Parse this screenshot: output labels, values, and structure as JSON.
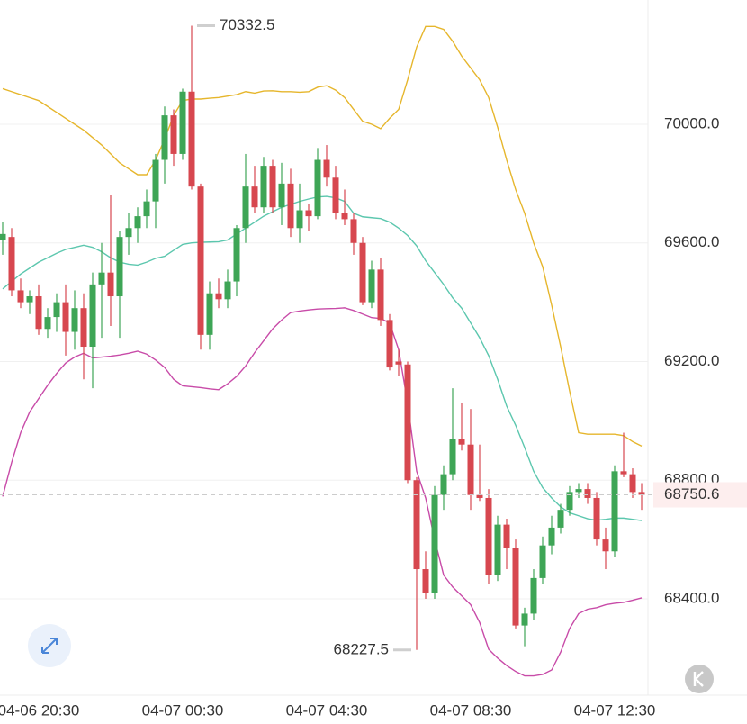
{
  "chart_data": {
    "type": "candlestick",
    "categories": [
      null,
      null,
      null,
      null,
      "04-06 20:30",
      null,
      null,
      null,
      null,
      null,
      null,
      null,
      null,
      null,
      null,
      null,
      null,
      null,
      null,
      null,
      "04-07 00:30",
      null,
      null,
      null,
      null,
      null,
      null,
      null,
      null,
      null,
      null,
      null,
      null,
      null,
      null,
      null,
      "04-07 04:30",
      null,
      null,
      null,
      null,
      null,
      null,
      null,
      null,
      null,
      null,
      null,
      null,
      null,
      null,
      null,
      "04-07 08:30",
      null,
      null,
      null,
      null,
      null,
      null,
      null,
      null,
      null,
      null,
      null,
      null,
      null,
      null,
      null,
      "04-07 12:30",
      null,
      null,
      null
    ],
    "open": [
      69610,
      69620,
      69440,
      69400,
      69420,
      69310,
      69350,
      69400,
      69300,
      69380,
      69250,
      69460,
      69500,
      69420,
      69620,
      69650,
      69690,
      69740,
      69880,
      70030,
      69900,
      70110,
      69790,
      69290,
      69430,
      69410,
      69470,
      69650,
      69790,
      69720,
      69860,
      69720,
      69800,
      69650,
      69710,
      69690,
      69880,
      69820,
      69700,
      69680,
      69600,
      69400,
      69510,
      69340,
      69200,
      69190,
      68800,
      68500,
      68420,
      68750,
      68820,
      68940,
      68920,
      68750,
      68740,
      68480,
      68650,
      68570,
      68310,
      68350,
      68470,
      68580,
      68640,
      68700,
      68760,
      68770,
      68740,
      68600,
      68560,
      68830,
      68820,
      68760
    ],
    "high": [
      69670,
      69650,
      69480,
      69440,
      69460,
      69380,
      69430,
      69460,
      69440,
      69430,
      69500,
      69600,
      69760,
      69640,
      69700,
      69720,
      69780,
      69900,
      70060,
      70050,
      70120,
      70332.5,
      69800,
      69470,
      69480,
      69510,
      69660,
      69900,
      69860,
      69890,
      69880,
      69870,
      69850,
      69800,
      69730,
      69920,
      69930,
      69860,
      69780,
      69700,
      69620,
      69540,
      69550,
      69360,
      69240,
      69200,
      68810,
      68560,
      68780,
      68850,
      69110,
      69060,
      69040,
      68920,
      68770,
      68680,
      68670,
      68600,
      68370,
      68500,
      68610,
      68680,
      68720,
      68780,
      68790,
      68790,
      68760,
      68640,
      68850,
      68960,
      68840,
      68790
    ],
    "low": [
      69560,
      69420,
      69380,
      69360,
      69290,
      69280,
      69300,
      69220,
      69240,
      69140,
      69110,
      69280,
      69320,
      69280,
      69560,
      69600,
      69650,
      69650,
      69800,
      69860,
      69880,
      69780,
      69240,
      69240,
      69380,
      69380,
      69420,
      69600,
      69700,
      69700,
      69700,
      69660,
      69620,
      69600,
      69640,
      69680,
      69790,
      69680,
      69660,
      69560,
      69390,
      69380,
      69320,
      69170,
      69150,
      68790,
      68227.5,
      68400,
      68400,
      68700,
      68800,
      68900,
      68700,
      68730,
      68450,
      68460,
      68500,
      68300,
      68240,
      68330,
      68450,
      68550,
      68620,
      68680,
      68740,
      68720,
      68580,
      68500,
      68540,
      68810,
      68740,
      68700
    ],
    "close": [
      69630,
      69440,
      69400,
      69420,
      69310,
      69350,
      69400,
      69300,
      69380,
      69250,
      69460,
      69500,
      69420,
      69620,
      69650,
      69690,
      69740,
      69880,
      70030,
      69900,
      70110,
      69790,
      69290,
      69430,
      69410,
      69470,
      69650,
      69790,
      69720,
      69860,
      69720,
      69800,
      69650,
      69710,
      69690,
      69880,
      69820,
      69700,
      69680,
      69600,
      69400,
      69510,
      69340,
      69180,
      69190,
      68800,
      68500,
      68420,
      68750,
      68820,
      68940,
      68920,
      68750,
      68740,
      68480,
      68650,
      68570,
      68310,
      68350,
      68470,
      68580,
      68640,
      68700,
      68760,
      68770,
      68740,
      68600,
      68560,
      68830,
      68820,
      68760,
      68750.6
    ],
    "up_color": "#3ea556",
    "down_color": "#d7474f",
    "lines": [
      {
        "color": "#e6b62c",
        "values": [
          70120,
          70110,
          70100,
          70090,
          70080,
          70060,
          70040,
          70020,
          70000,
          69980,
          69955,
          69930,
          69900,
          69870,
          69850,
          69830,
          69830,
          69880,
          69950,
          70030,
          70080,
          70085,
          70085,
          70088,
          70090,
          70095,
          70100,
          70110,
          70105,
          70112,
          70113,
          70110,
          70110,
          70108,
          70110,
          70125,
          70130,
          70115,
          70090,
          70050,
          70010,
          70000,
          69985,
          70020,
          70050,
          70150,
          70260,
          70330,
          70330,
          70320,
          70280,
          70230,
          70190,
          70150,
          70090,
          69990,
          69880,
          69780,
          69700,
          69600,
          69520,
          69390,
          69250,
          69100,
          68960,
          68955,
          68955,
          68955,
          68955,
          68950,
          68930,
          68915
        ]
      },
      {
        "color": "#5cc7ae",
        "values": [
          69445,
          69470,
          69495,
          69515,
          69535,
          69550,
          69565,
          69578,
          69585,
          69592,
          69585,
          69570,
          69550,
          69535,
          69528,
          69525,
          69535,
          69548,
          69555,
          69575,
          69595,
          69600,
          69602,
          69603,
          69604,
          69610,
          69630,
          69650,
          69670,
          69690,
          69705,
          69720,
          69730,
          69740,
          69748,
          69755,
          69757,
          69752,
          69740,
          69700,
          69688,
          69685,
          69682,
          69670,
          69650,
          69625,
          69590,
          69540,
          69500,
          69460,
          69415,
          69380,
          69330,
          69280,
          69220,
          69140,
          69050,
          68985,
          68910,
          68830,
          68775,
          68740,
          68710,
          68690,
          68680,
          68670,
          68665,
          68668,
          68672,
          68672,
          68668,
          68664
        ]
      },
      {
        "color": "#c84ba8",
        "values": [
          68745,
          68860,
          68960,
          69030,
          69075,
          69120,
          69160,
          69195,
          69215,
          69228,
          69212,
          69215,
          69218,
          69222,
          69228,
          69235,
          69225,
          69205,
          69180,
          69140,
          69118,
          69115,
          69112,
          69108,
          69105,
          69125,
          69150,
          69185,
          69230,
          69270,
          69310,
          69340,
          69365,
          69370,
          69374,
          69377,
          69378,
          69379,
          69381,
          69372,
          69360,
          69348,
          69345,
          69330,
          69240,
          69060,
          68830,
          68740,
          68600,
          68480,
          68440,
          68410,
          68380,
          68320,
          68230,
          68200,
          68175,
          68155,
          68140,
          68140,
          68145,
          68160,
          68220,
          68300,
          68350,
          68365,
          68370,
          68380,
          68385,
          68388,
          68395,
          68403
        ]
      }
    ],
    "ylim": [
      68075,
      70419
    ],
    "yticks": [
      {
        "value": 68400,
        "label": "68400.0"
      },
      {
        "value": 68800,
        "label": "68800.0"
      },
      {
        "value": 69200,
        "label": "69200.0"
      },
      {
        "value": 69600,
        "label": "69600.0"
      },
      {
        "value": 70000,
        "label": "70000.0"
      }
    ],
    "grid": true,
    "last_price_color": "#d7474f"
  }
}
